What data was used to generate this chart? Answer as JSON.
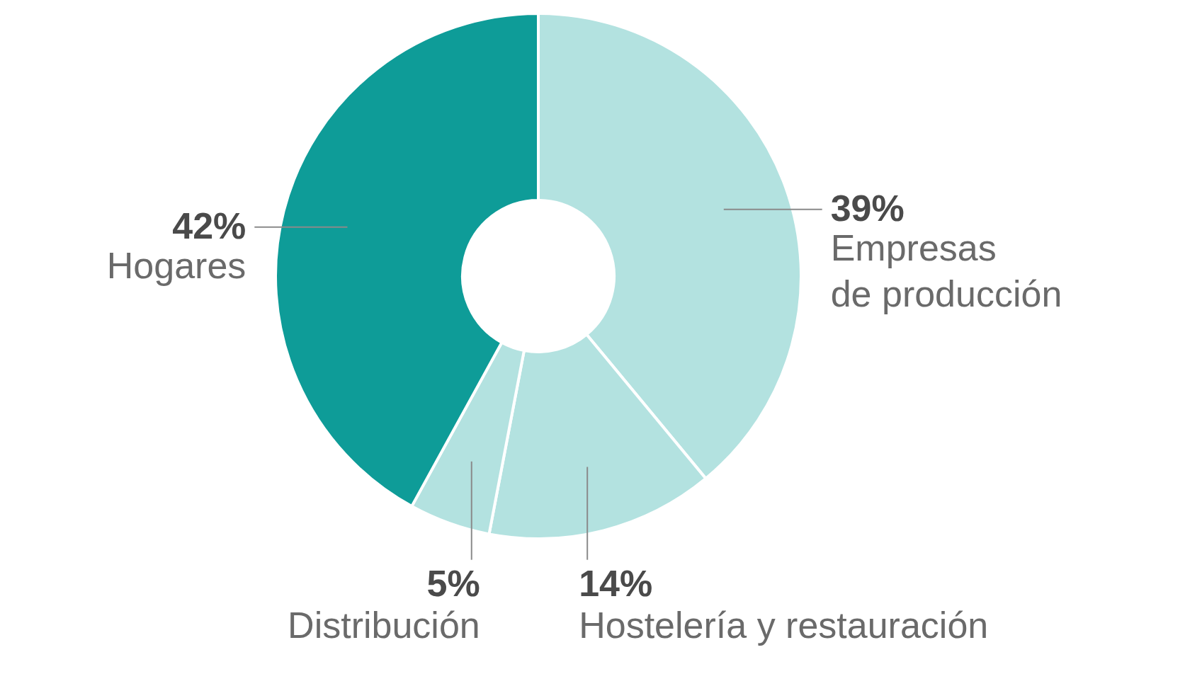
{
  "chart_data": {
    "type": "donut",
    "categories": [
      "Empresas\nde producción",
      "Hostelería y restauración",
      "Distribución",
      "Hogares"
    ],
    "values": [
      39,
      14,
      5,
      42
    ],
    "colors": [
      "#b3e2e0",
      "#b3e2e0",
      "#b3e2e0",
      "#0e9c98"
    ],
    "value_labels": [
      "39%",
      "14%",
      "5%",
      "42%"
    ]
  }
}
